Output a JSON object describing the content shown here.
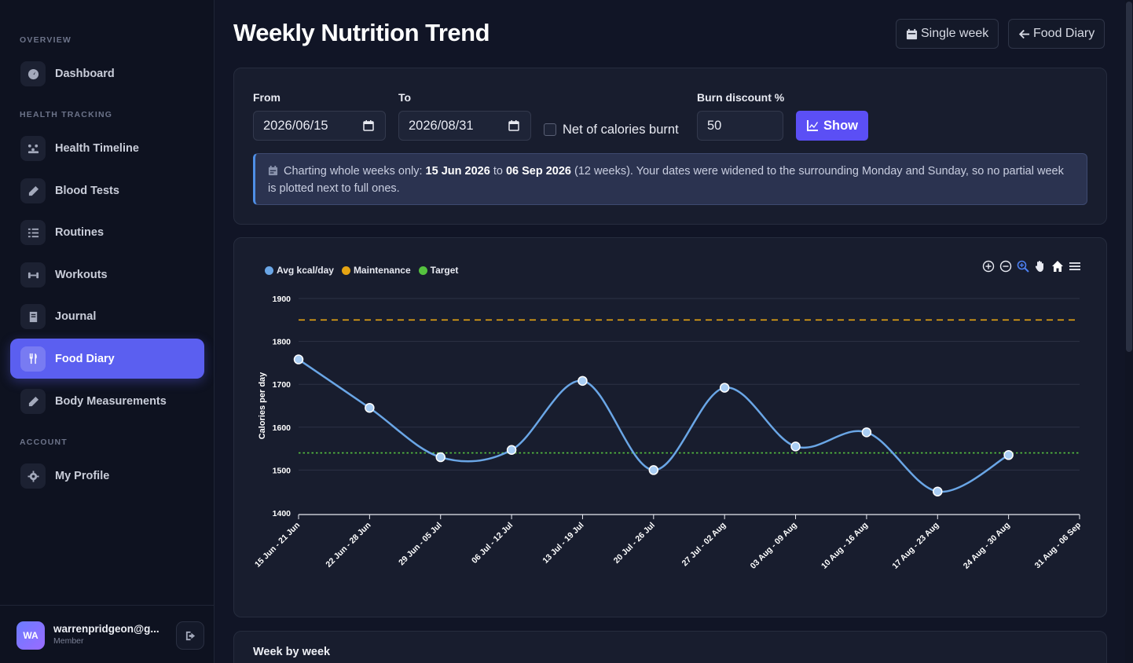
{
  "sidebar": {
    "sections": [
      "OVERVIEW",
      "HEALTH TRACKING",
      "ACCOUNT"
    ],
    "items": [
      {
        "label": "Dashboard",
        "icon": "dashboard-icon"
      },
      {
        "label": "Health Timeline",
        "icon": "timeline-icon"
      },
      {
        "label": "Blood Tests",
        "icon": "syringe-icon"
      },
      {
        "label": "Routines",
        "icon": "list-icon"
      },
      {
        "label": "Workouts",
        "icon": "dumbbell-icon"
      },
      {
        "label": "Journal",
        "icon": "book-icon"
      },
      {
        "label": "Food Diary",
        "icon": "utensils-icon",
        "active": true
      },
      {
        "label": "Body Measurements",
        "icon": "ruler-icon"
      },
      {
        "label": "My Profile",
        "icon": "gear-icon"
      }
    ],
    "user": {
      "initials": "WA",
      "email": "warrenpridgeon@g...",
      "role": "Member"
    }
  },
  "header": {
    "title": "Weekly Nutrition Trend",
    "single_week_label": "Single week",
    "food_diary_label": "Food Diary"
  },
  "filters": {
    "from_label": "From",
    "from_value": "2026/06/15",
    "to_label": "To",
    "to_value": "2026/08/31",
    "net_label": "Net of calories burnt",
    "net_checked": false,
    "burn_label": "Burn discount %",
    "burn_value": "50",
    "show_label": "Show"
  },
  "info": {
    "prefix": "Charting whole weeks only:",
    "start": "15 Jun 2026",
    "to_word": "to",
    "end": "06 Sep 2026",
    "suffix": "(12 weeks). Your dates were widened to the surrounding Monday and Sunday, so no partial week is plotted next to full ones."
  },
  "toolbar": {
    "icons": [
      "zoom-in-icon",
      "zoom-out-icon",
      "zoom-select-icon",
      "pan-icon",
      "home-icon",
      "menu-icon"
    ]
  },
  "colors": {
    "accent": "#5b5ff0",
    "avg": "#6aa6e6",
    "maintenance": "#e5a413",
    "target": "#55c23f"
  },
  "chart_data": {
    "type": "line",
    "categories": [
      "15 Jun - 21 Jun",
      "22 Jun - 28 Jun",
      "29 Jun - 05 Jul",
      "06 Jul - 12 Jul",
      "13 Jul - 19 Jul",
      "20 Jul - 26 Jul",
      "27 Jul - 02 Aug",
      "03 Aug - 09 Aug",
      "10 Aug - 16 Aug",
      "17 Aug - 23 Aug",
      "24 Aug - 30 Aug",
      "31 Aug - 06 Sep"
    ],
    "series": [
      {
        "name": "Avg kcal/day",
        "values": [
          1758,
          1645,
          1530,
          1547,
          1708,
          1500,
          1692,
          1555,
          1588,
          1450,
          1535,
          null
        ],
        "style": "smooth-line-markers"
      },
      {
        "name": "Maintenance",
        "values": [
          1850,
          1850,
          1850,
          1850,
          1850,
          1850,
          1850,
          1850,
          1850,
          1850,
          1850,
          1850
        ],
        "style": "dashed"
      },
      {
        "name": "Target",
        "values": [
          1540,
          1540,
          1540,
          1540,
          1540,
          1540,
          1540,
          1540,
          1540,
          1540,
          1540,
          1540
        ],
        "style": "dotted"
      }
    ],
    "ylabel": "Calories per day",
    "xlabel": "",
    "ylim": [
      1400,
      1900
    ],
    "yticks": [
      1400,
      1500,
      1600,
      1700,
      1800,
      1900
    ],
    "grid": true,
    "legend": "top-left"
  },
  "week_by_week": {
    "title": "Week by week"
  }
}
